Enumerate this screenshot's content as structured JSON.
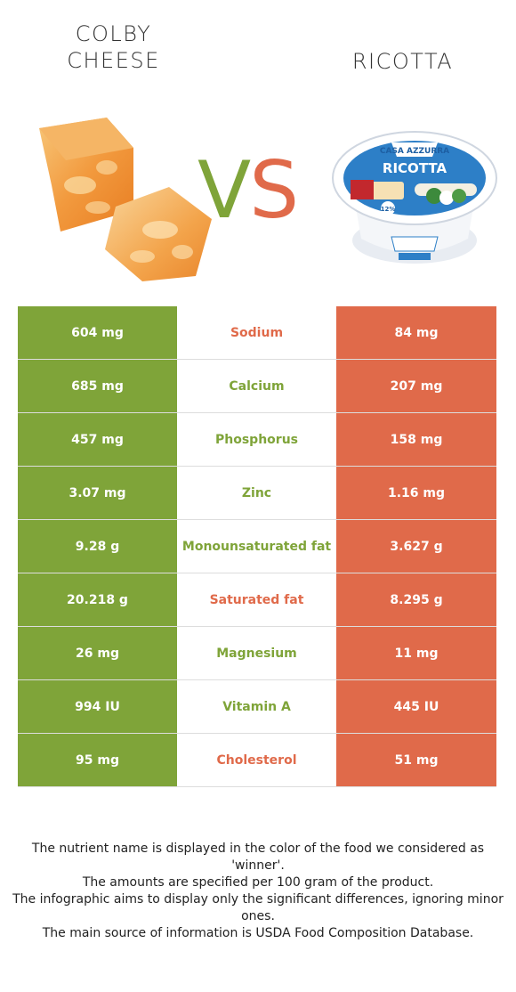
{
  "header": {
    "left_food": {
      "line1": "COLBY",
      "line2": "CHEESE"
    },
    "right_food": {
      "line1": "RICOTTA"
    },
    "vs_v": "V",
    "vs_s": "S"
  },
  "product_label": {
    "brand": "CASA AZZURRA",
    "name": "RICOTTA",
    "fat": "12%"
  },
  "colors": {
    "left": "#7fa439",
    "right": "#e06a4a"
  },
  "rows": [
    {
      "left": "604 mg",
      "name": "Sodium",
      "right": "84 mg",
      "winner": "right"
    },
    {
      "left": "685 mg",
      "name": "Calcium",
      "right": "207 mg",
      "winner": "left"
    },
    {
      "left": "457 mg",
      "name": "Phosphorus",
      "right": "158 mg",
      "winner": "left"
    },
    {
      "left": "3.07 mg",
      "name": "Zinc",
      "right": "1.16 mg",
      "winner": "left"
    },
    {
      "left": "9.28 g",
      "name": "Monounsaturated fat",
      "right": "3.627 g",
      "winner": "left"
    },
    {
      "left": "20.218 g",
      "name": "Saturated fat",
      "right": "8.295 g",
      "winner": "right"
    },
    {
      "left": "26 mg",
      "name": "Magnesium",
      "right": "11 mg",
      "winner": "left"
    },
    {
      "left": "994 IU",
      "name": "Vitamin A",
      "right": "445 IU",
      "winner": "left"
    },
    {
      "left": "95 mg",
      "name": "Cholesterol",
      "right": "51 mg",
      "winner": "right"
    }
  ],
  "footer": [
    "The nutrient name is displayed in the color of the food we considered as 'winner'.",
    "The amounts are specified per 100 gram of the product.",
    "The infographic aims to display only the significant differences, ignoring minor ones.",
    "The main source of information is USDA Food Composition Database."
  ]
}
